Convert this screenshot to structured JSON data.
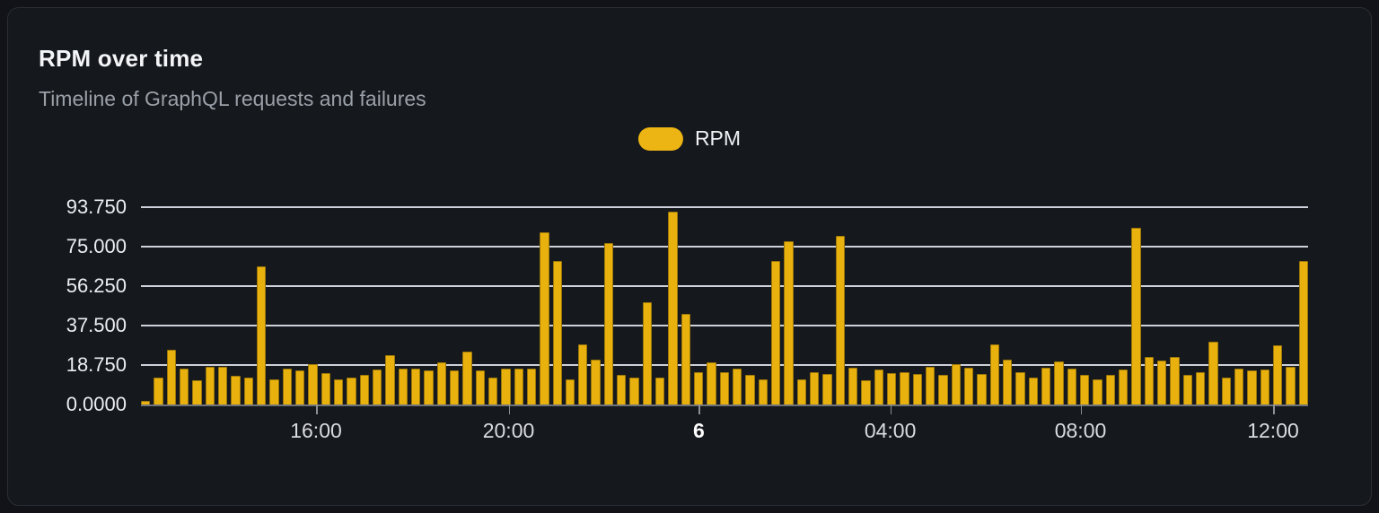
{
  "card": {
    "title": "RPM over time",
    "subtitle": "Timeline of GraphQL requests and failures"
  },
  "legend": {
    "label": "RPM",
    "swatch_color": "#ecb513"
  },
  "chart_data": {
    "type": "bar",
    "title": "RPM over time",
    "series_name": "RPM",
    "ylabel": "",
    "xlabel": "",
    "ylim": [
      0,
      93.75
    ],
    "grid": true,
    "legend_position": "top-center",
    "bar_color": "#e9b10e",
    "gridline_color": "#dfe2ea",
    "y_ticks": [
      {
        "label": "93.750",
        "value": 93.75
      },
      {
        "label": "75.000",
        "value": 75.0
      },
      {
        "label": "56.250",
        "value": 56.25
      },
      {
        "label": "37.500",
        "value": 37.5
      },
      {
        "label": "18.750",
        "value": 18.75
      },
      {
        "label": "0.0000",
        "value": 0.0
      }
    ],
    "x_ticks": [
      {
        "label": "16:00",
        "pos_pct": 15.0,
        "bold": false
      },
      {
        "label": "20:00",
        "pos_pct": 31.5,
        "bold": false
      },
      {
        "label": "6",
        "pos_pct": 47.8,
        "bold": true
      },
      {
        "label": "04:00",
        "pos_pct": 64.2,
        "bold": false
      },
      {
        "label": "08:00",
        "pos_pct": 80.5,
        "bold": false
      },
      {
        "label": "12:00",
        "pos_pct": 97.0,
        "bold": false
      }
    ],
    "values": [
      1.5,
      13,
      26,
      17,
      11.5,
      18,
      18,
      13.5,
      13,
      65.5,
      12,
      17,
      16,
      19,
      15,
      12,
      13,
      14,
      16.5,
      23.5,
      17,
      17,
      16,
      20,
      16,
      25,
      16,
      13,
      17,
      17,
      17,
      82,
      68,
      12,
      28.5,
      21.5,
      76.5,
      14,
      13,
      48.5,
      13,
      91.5,
      43,
      15.5,
      20,
      15.5,
      17,
      14,
      12,
      68,
      77.5,
      12,
      15.5,
      14.5,
      80,
      17.5,
      11.5,
      16.5,
      15,
      15.5,
      14.5,
      18,
      14,
      19,
      17.5,
      14.5,
      28.5,
      21.5,
      15.5,
      13,
      17.5,
      20.5,
      17,
      14,
      12,
      14,
      16.5,
      84,
      22.5,
      21,
      22.5,
      14,
      15.5,
      30,
      13,
      17,
      16,
      16.5,
      28,
      18,
      68
    ]
  }
}
